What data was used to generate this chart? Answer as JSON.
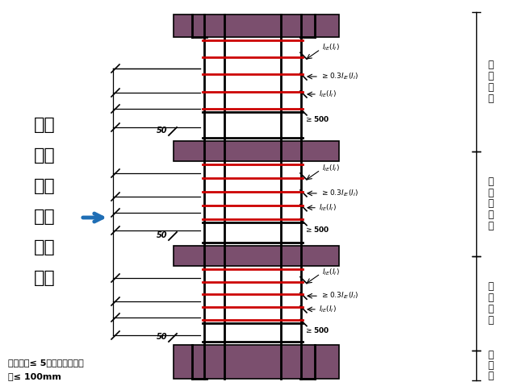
{
  "bg_color": "#ffffff",
  "wall_color": "#7b4f6e",
  "stirrup_color": "#cc0000",
  "rebar_color": "#000000",
  "title_chars": [
    "纵筋",
    "维扎",
    "连接",
    "时筜",
    "筋的",
    "设置"
  ],
  "arrow_color": "#1f6eb5",
  "bottom_text1": "筜筋间距≤ 5倍纵筋最小直径",
  "bottom_text2": "且≤ 100mm",
  "layer_labels": [
    "顶层层高",
    "中间层层高",
    "首层层高",
    "基础高"
  ],
  "fifty_label": "50"
}
